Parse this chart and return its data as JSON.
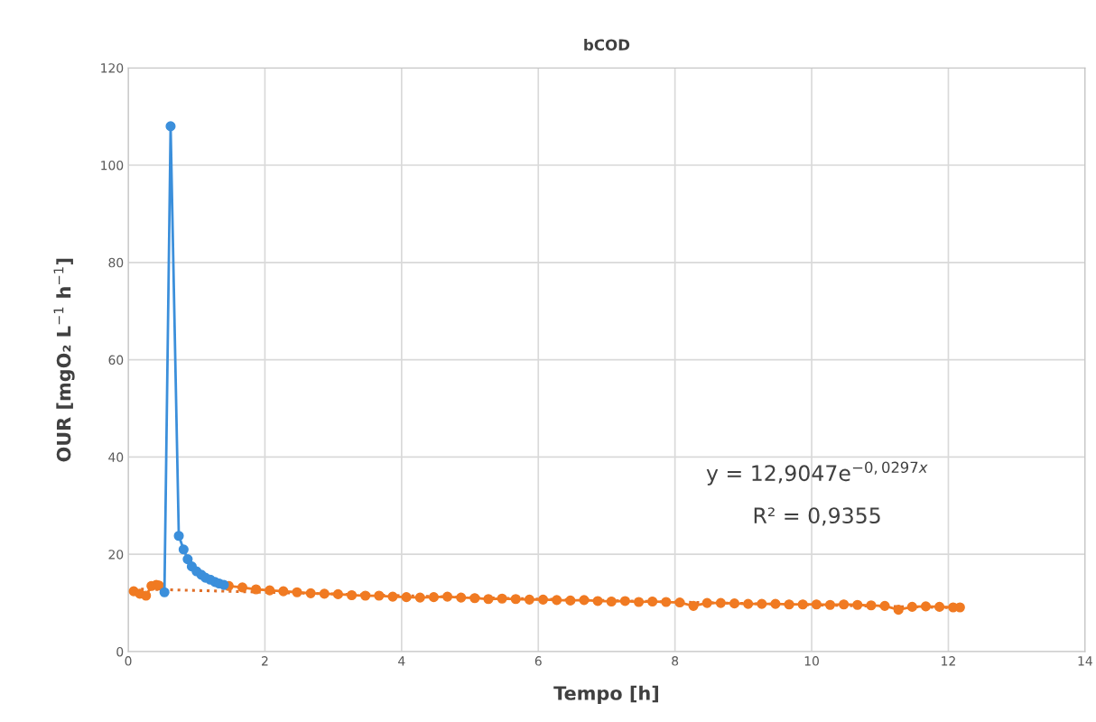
{
  "chart_data": {
    "type": "line",
    "title": "bCOD",
    "xlabel": "Tempo [h]",
    "ylabel": "OUR [mgO₂ L$^{−1}$ h$^{−1}$]",
    "xlim": [
      0,
      14
    ],
    "xticks": [
      0,
      2,
      4,
      6,
      8,
      10,
      12,
      14
    ],
    "ylim": [
      0,
      120
    ],
    "yticks": [
      0,
      20,
      40,
      60,
      80,
      100,
      120
    ],
    "grid": true,
    "annotations": [
      "y = 12,9047e$^{−0,0297x}$",
      "R² = 0,9355"
    ],
    "series": [
      {
        "color": "#f07a22",
        "marker": "circle",
        "line_style": "solid",
        "x": [
          0.08,
          0.17,
          0.26,
          0.34,
          0.41,
          0.45,
          0.53,
          1.47,
          1.67,
          1.87,
          2.07,
          2.27,
          2.47,
          2.67,
          2.87,
          3.07,
          3.27,
          3.47,
          3.67,
          3.87,
          4.07,
          4.27,
          4.47,
          4.67,
          4.87,
          5.07,
          5.27,
          5.47,
          5.67,
          5.87,
          6.07,
          6.27,
          6.47,
          6.67,
          6.87,
          7.07,
          7.27,
          7.47,
          7.67,
          7.87,
          8.07,
          8.27,
          8.47,
          8.67,
          8.87,
          9.07,
          9.27,
          9.47,
          9.67,
          9.87,
          10.07,
          10.27,
          10.47,
          10.67,
          10.87,
          11.07,
          11.27,
          11.47,
          11.67,
          11.87,
          12.07,
          12.17
        ],
        "values": [
          12.4,
          11.9,
          11.5,
          13.5,
          13.7,
          13.6,
          null,
          13.5,
          13.2,
          12.8,
          12.6,
          12.4,
          12.2,
          12.0,
          11.9,
          11.8,
          11.6,
          11.5,
          11.5,
          11.3,
          11.2,
          11.1,
          11.2,
          11.3,
          11.1,
          11.0,
          10.8,
          10.9,
          10.8,
          10.7,
          10.7,
          10.6,
          10.5,
          10.6,
          10.4,
          10.3,
          10.4,
          10.2,
          10.3,
          10.2,
          10.1,
          9.4,
          10.0,
          10.0,
          9.9,
          9.8,
          9.8,
          9.8,
          9.7,
          9.7,
          9.7,
          9.6,
          9.7,
          9.6,
          9.5,
          9.4,
          8.6,
          9.2,
          9.3,
          9.2,
          9.1,
          9.1
        ]
      },
      {
        "color": "#3b8fdb",
        "marker": "circle",
        "line_style": "solid",
        "x": [
          0.53,
          0.62,
          0.74,
          0.81,
          0.87,
          0.93,
          1.0,
          1.07,
          1.13,
          1.2,
          1.27,
          1.33,
          1.4
        ],
        "values": [
          12.2,
          108,
          23.8,
          21,
          19,
          17.5,
          16.5,
          15.8,
          15.2,
          14.8,
          14.3,
          14.0,
          13.7
        ]
      },
      {
        "color": "#e0702a",
        "marker": "none",
        "line_style": "dotted",
        "x": [
          0.08,
          2,
          4,
          6,
          8,
          10,
          12.17
        ],
        "values": [
          12.9,
          12.2,
          11.5,
          10.8,
          10.2,
          9.6,
          9.0
        ]
      }
    ]
  }
}
